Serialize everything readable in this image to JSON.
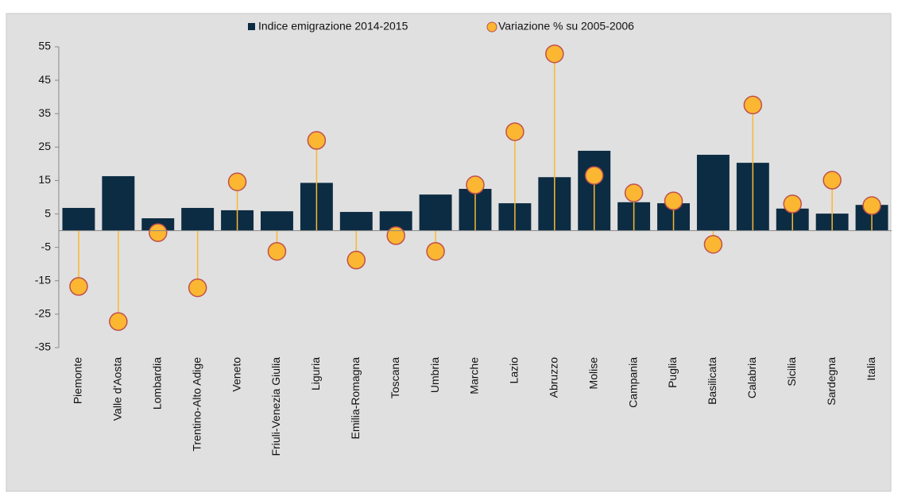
{
  "chart_data": {
    "type": "bar",
    "categories": [
      "Piemonte",
      "Valle d'Aosta",
      "Lombardia",
      "Trentino-Alto Adige",
      "Veneto",
      "Friuli-Venezia Giulia",
      "Liguria",
      "Emilia-Romagna",
      "Toscana",
      "Umbria",
      "Marche",
      "Lazio",
      "Abruzzo",
      "Molise",
      "Campania",
      "Puglia",
      "Basilicata",
      "Calabria",
      "Sicilia",
      "Sardegna",
      "Italia"
    ],
    "series": [
      {
        "name": "Indice emigrazione 2014-2015",
        "type": "bar",
        "color": "#0c2c43",
        "values": [
          6.8,
          16.3,
          3.7,
          6.8,
          6.1,
          5.8,
          14.3,
          5.6,
          5.8,
          10.8,
          12.5,
          8.2,
          16,
          23.9,
          8.5,
          8.2,
          22.7,
          20.3,
          6.6,
          5.1,
          7.7
        ]
      },
      {
        "name": "Variazione % su 2005-2006",
        "type": "scatter",
        "color": "#fbb731",
        "values": [
          -16.7,
          -27.2,
          -0.6,
          -17.1,
          14.6,
          -6.2,
          27,
          -8.8,
          -1.5,
          -6.2,
          13.7,
          29.6,
          52.9,
          16.5,
          11.3,
          8.9,
          -4.1,
          37.6,
          8,
          15.1,
          7.5
        ]
      }
    ],
    "ylim": [
      -35,
      55
    ],
    "yticks": [
      -35,
      -25,
      -15,
      -5,
      5,
      15,
      25,
      35,
      45,
      55
    ],
    "legend": "top"
  }
}
